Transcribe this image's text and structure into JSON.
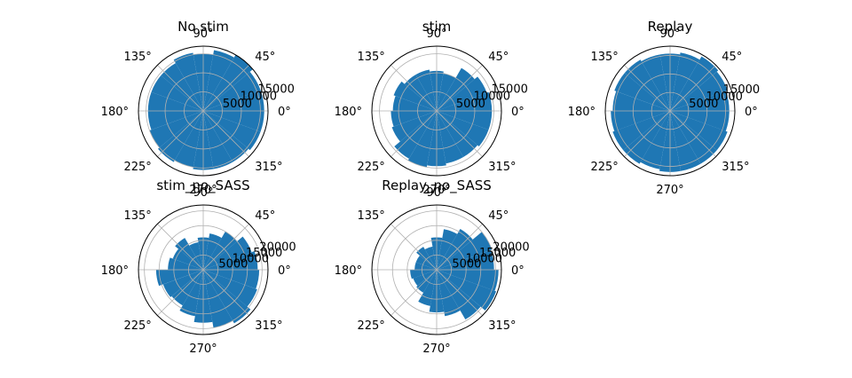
{
  "figure": {
    "bar_color": "#1f77b4",
    "grid_color": "#b0b0b0",
    "axis_color": "#000000"
  },
  "chart_data": [
    {
      "type": "polar-bar",
      "title": "No stim",
      "angle_ticks": [
        "0°",
        "45°",
        "90°",
        "135°",
        "180°",
        "225°",
        "270°",
        "315°"
      ],
      "r_ticks": [
        5000,
        10000,
        15000
      ],
      "r_tick_labels": [
        "5000",
        "10000",
        "15000"
      ],
      "rmax": 17000,
      "bin_degrees": 20,
      "values": [
        16000,
        16000,
        17000,
        16200,
        15000,
        15500,
        14500,
        14500,
        14500,
        14500,
        15000,
        15500,
        15000,
        15500,
        15500,
        15500,
        16000,
        16000
      ]
    },
    {
      "type": "polar-bar",
      "title": "stim",
      "angle_ticks": [
        "0°",
        "45°",
        "90°",
        "135°",
        "180°",
        "225°",
        "270°",
        "315°"
      ],
      "r_ticks": [
        5000,
        10000,
        15000
      ],
      "r_tick_labels": [
        "5000",
        "10000",
        "15000"
      ],
      "rmax": 17000,
      "bin_degrees": 20,
      "values": [
        14500,
        14000,
        13000,
        10000,
        10500,
        11000,
        11000,
        12000,
        11500,
        12000,
        12500,
        14500,
        15000,
        14500,
        14000,
        14000,
        14500,
        14500
      ]
    },
    {
      "type": "polar-bar",
      "title": "Replay",
      "angle_ticks": [
        "0°",
        "45°",
        "90°",
        "135°",
        "180°",
        "225°",
        "270°",
        "315°"
      ],
      "r_ticks": [
        5000,
        10000,
        15000
      ],
      "r_tick_labels": [
        "5000",
        "10000",
        "15000"
      ],
      "rmax": 17500,
      "bin_degrees": 20,
      "values": [
        16000,
        16500,
        17000,
        16000,
        15500,
        15500,
        16000,
        16000,
        15500,
        16000,
        16500,
        16500,
        16000,
        16500,
        16500,
        16500,
        16500,
        16000
      ]
    },
    {
      "type": "polar-bar",
      "title": "stim_no_SASS",
      "angle_ticks": [
        "0°",
        "45°",
        "90°",
        "135°",
        "180°",
        "225°",
        "270°",
        "315°"
      ],
      "r_ticks": [
        5000,
        10000,
        15000,
        20000
      ],
      "r_tick_labels": [
        "5000",
        "10000",
        "15000",
        "20000"
      ],
      "rmax": 22000,
      "bin_degrees": 20,
      "values": [
        18500,
        17500,
        15000,
        12500,
        11000,
        9500,
        12500,
        11000,
        12000,
        16000,
        14500,
        14000,
        16000,
        18000,
        20000,
        21000,
        19500,
        19000
      ]
    },
    {
      "type": "polar-bar",
      "title": "Replay_no_SASS",
      "angle_ticks": [
        "0°",
        "45°",
        "90°",
        "135°",
        "180°",
        "225°",
        "270°",
        "315°"
      ],
      "r_ticks": [
        5000,
        10000,
        15000,
        20000
      ],
      "r_tick_labels": [
        "5000",
        "10000",
        "15000",
        "20000"
      ],
      "rmax": 22000,
      "bin_degrees": 20,
      "values": [
        19500,
        20000,
        16000,
        14000,
        11000,
        8000,
        9000,
        7500,
        7500,
        9000,
        8500,
        9000,
        12500,
        14500,
        16000,
        19500,
        21500,
        21000
      ]
    }
  ]
}
